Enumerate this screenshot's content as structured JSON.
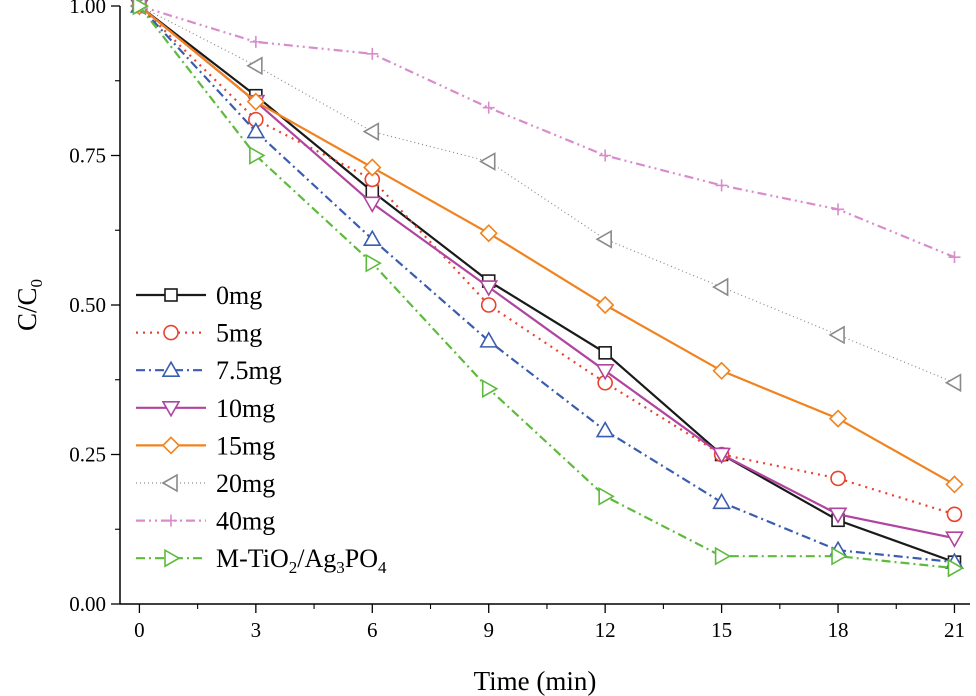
{
  "chart_data": {
    "type": "line",
    "xlabel": "Time (min)",
    "ylabel": {
      "main": "C/C",
      "sub": "0"
    },
    "xlim": [
      -0.5,
      21.4
    ],
    "ylim": [
      0.0,
      1.0
    ],
    "x": [
      0,
      3,
      6,
      9,
      12,
      15,
      18,
      21
    ],
    "xticks": [
      "0",
      "3",
      "6",
      "9",
      "12",
      "15",
      "18",
      "21"
    ],
    "yticks": [
      "0.00",
      "0.25",
      "0.50",
      "0.75",
      "1.00"
    ],
    "yticks_values": [
      0,
      0.25,
      0.5,
      0.75,
      1.0
    ],
    "grid": false,
    "legend_position": "left",
    "series": [
      {
        "name": "0mg",
        "label_parts": [
          {
            "t": "0mg"
          }
        ],
        "color": "#1a1a1a",
        "dash": "solid",
        "marker": "square",
        "values": [
          1.0,
          0.85,
          0.69,
          0.54,
          0.42,
          0.25,
          0.14,
          0.07
        ]
      },
      {
        "name": "5mg",
        "label_parts": [
          {
            "t": "5mg"
          }
        ],
        "color": "#e8432e",
        "dash": "dot",
        "marker": "circle",
        "values": [
          1.0,
          0.81,
          0.71,
          0.5,
          0.37,
          0.25,
          0.21,
          0.15
        ]
      },
      {
        "name": "7.5mg",
        "label_parts": [
          {
            "t": "7.5mg"
          }
        ],
        "color": "#3a5db0",
        "dash": "dashdot",
        "marker": "triangle-up",
        "values": [
          1.0,
          0.79,
          0.61,
          0.44,
          0.29,
          0.17,
          0.09,
          0.07
        ]
      },
      {
        "name": "10mg",
        "label_parts": [
          {
            "t": "10mg"
          }
        ],
        "color": "#b0449f",
        "dash": "solid",
        "marker": "triangle-down",
        "values": [
          1.0,
          0.84,
          0.67,
          0.53,
          0.39,
          0.25,
          0.15,
          0.11
        ]
      },
      {
        "name": "15mg",
        "label_parts": [
          {
            "t": "15mg"
          }
        ],
        "color": "#f0831f",
        "dash": "solid",
        "marker": "diamond",
        "values": [
          1.0,
          0.84,
          0.73,
          0.62,
          0.5,
          0.39,
          0.31,
          0.2
        ]
      },
      {
        "name": "20mg",
        "label_parts": [
          {
            "t": "20mg"
          }
        ],
        "color": "#8a8a8a",
        "dash": "finedot",
        "marker": "triangle-left",
        "values": [
          1.0,
          0.9,
          0.79,
          0.74,
          0.61,
          0.53,
          0.45,
          0.37
        ]
      },
      {
        "name": "40mg",
        "label_parts": [
          {
            "t": "40mg"
          }
        ],
        "color": "#d98ccc",
        "dash": "dashdotdot",
        "marker": "plus",
        "values": [
          1.0,
          0.94,
          0.92,
          0.83,
          0.75,
          0.7,
          0.66,
          0.58
        ]
      },
      {
        "name": "M-TiO2/Ag3PO4",
        "label_parts": [
          {
            "t": "M-TiO"
          },
          {
            "t": "2",
            "sub": true
          },
          {
            "t": "/Ag"
          },
          {
            "t": "3",
            "sub": true
          },
          {
            "t": "PO"
          },
          {
            "t": "4",
            "sub": true
          }
        ],
        "color": "#5dbb3c",
        "dash": "dashdot",
        "marker": "triangle-right",
        "values": [
          1.0,
          0.75,
          0.57,
          0.36,
          0.18,
          0.08,
          0.08,
          0.06
        ]
      }
    ]
  }
}
